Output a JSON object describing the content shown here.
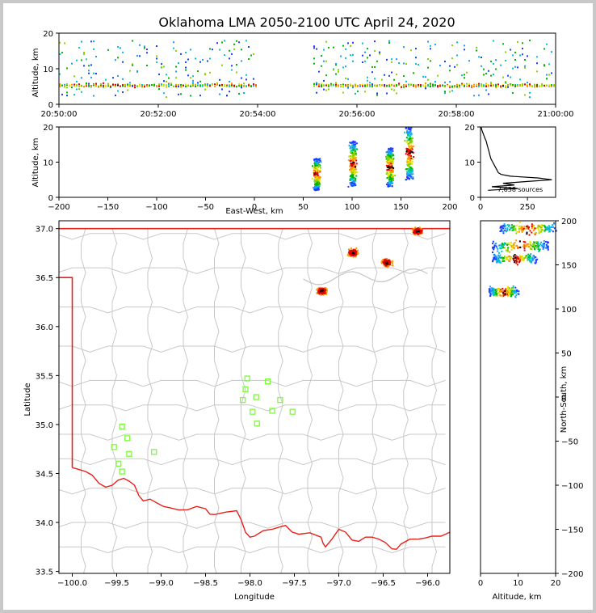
{
  "chart_data": [
    {
      "type": "scatter",
      "panel": "time-altitude",
      "title": "Oklahoma LMA 2050-2100 UTC April 24, 2020",
      "xlabel": "",
      "ylabel": "Altitude, km",
      "xticks": [
        "20:50:00",
        "20:52:00",
        "20:54:00",
        "20:56:00",
        "20:58:00",
        "21:00:00"
      ],
      "xlim_minutes": [
        0,
        10
      ],
      "ylim": [
        0,
        20
      ],
      "yticks": [
        0,
        10,
        20
      ],
      "gap_minutes": [
        4.0,
        5.1
      ],
      "grid": false
    },
    {
      "type": "scatter",
      "panel": "east-west-altitude",
      "xlabel": "East-West, km",
      "ylabel": "Altitude, km",
      "xlim": [
        -200,
        200
      ],
      "xticks": [
        -200,
        -150,
        -100,
        -50,
        0,
        50,
        100,
        150,
        200
      ],
      "ylim": [
        0,
        20
      ],
      "yticks": [
        0,
        10,
        20
      ],
      "clusters": [
        {
          "x": 63,
          "ylow": 2,
          "yhigh": 11
        },
        {
          "x": 100,
          "ylow": 3,
          "yhigh": 16
        },
        {
          "x": 138,
          "ylow": 3,
          "yhigh": 14
        },
        {
          "x": 158,
          "ylow": 5,
          "yhigh": 20
        }
      ]
    },
    {
      "type": "line",
      "panel": "altitude-histogram",
      "xlim": [
        0,
        400
      ],
      "xticks": [
        0,
        250
      ],
      "ylim": [
        0,
        20
      ],
      "yticks": [
        0,
        10,
        20
      ],
      "annotation": "7,638 sources",
      "profile": [
        [
          2,
          40
        ],
        [
          2.5,
          200
        ],
        [
          3,
          60
        ],
        [
          3.5,
          180
        ],
        [
          4,
          120
        ],
        [
          4.5,
          250
        ],
        [
          5,
          380
        ],
        [
          5.5,
          310
        ],
        [
          6,
          160
        ],
        [
          6.5,
          110
        ],
        [
          7,
          95
        ],
        [
          8,
          85
        ],
        [
          9,
          75
        ],
        [
          10,
          65
        ],
        [
          11,
          55
        ],
        [
          12,
          50
        ],
        [
          13,
          45
        ],
        [
          14,
          40
        ],
        [
          15,
          35
        ],
        [
          16,
          30
        ],
        [
          17,
          22
        ],
        [
          18,
          15
        ],
        [
          19,
          8
        ],
        [
          20,
          3
        ]
      ]
    },
    {
      "type": "map",
      "panel": "plan-view",
      "xlabel": "Longitude",
      "ylabel": "Latitude",
      "xlim": [
        -100.15,
        -95.75
      ],
      "ylim": [
        33.48,
        37.08
      ],
      "xticks": [
        -100.0,
        -99.5,
        -99.0,
        -98.5,
        -98.0,
        -97.5,
        -97.0,
        -96.5,
        -96.0
      ],
      "yticks": [
        33.5,
        34.0,
        34.5,
        35.0,
        35.5,
        36.0,
        36.5,
        37.0
      ],
      "xtick_labels": [
        "−100.0",
        "−99.5",
        "−99.0",
        "−98.5",
        "−98.0",
        "−97.5",
        "−97.0",
        "−96.5",
        "−96.0"
      ],
      "ytick_labels": [
        "33.5",
        "34.0",
        "34.5",
        "35.0",
        "35.5",
        "36.0",
        "36.5",
        "37.0"
      ],
      "stations": [
        [
          -98.03,
          35.47
        ],
        [
          -97.8,
          35.44
        ],
        [
          -98.05,
          35.36
        ],
        [
          -97.93,
          35.28
        ],
        [
          -98.08,
          35.25
        ],
        [
          -97.66,
          35.25
        ],
        [
          -97.97,
          35.13
        ],
        [
          -97.75,
          35.14
        ],
        [
          -97.52,
          35.13
        ],
        [
          -97.92,
          35.01
        ],
        [
          -99.44,
          34.98
        ],
        [
          -99.38,
          34.86
        ],
        [
          -99.53,
          34.77
        ],
        [
          -99.36,
          34.7
        ],
        [
          -99.08,
          34.72
        ],
        [
          -99.48,
          34.6
        ],
        [
          -99.44,
          34.52
        ]
      ],
      "source_clusters": [
        {
          "lon": -97.2,
          "lat": 36.37
        },
        {
          "lon": -96.85,
          "lat": 36.76
        },
        {
          "lon": -96.47,
          "lat": 36.66
        },
        {
          "lon": -96.12,
          "lat": 36.98
        }
      ]
    },
    {
      "type": "scatter",
      "panel": "altitude-north-south",
      "xlabel": "Altitude, km",
      "ylabel": "North-South, km",
      "xlim": [
        0,
        20
      ],
      "xticks": [
        0,
        10,
        20
      ],
      "ylim": [
        -200,
        200
      ],
      "yticks": [
        -200,
        -150,
        -100,
        -50,
        0,
        50,
        100,
        150,
        200
      ],
      "clusters": [
        {
          "y": 120,
          "xlow": 2,
          "xhigh": 10
        },
        {
          "y": 158,
          "xlow": 3,
          "xhigh": 15
        },
        {
          "y": 172,
          "xlow": 3,
          "xhigh": 18
        },
        {
          "y": 192,
          "xlow": 5,
          "xhigh": 20
        }
      ]
    }
  ],
  "colors": {
    "state_border": "#e8201a",
    "county_lines": "#c8c8c8",
    "stations": "#7cfc3a",
    "histogram": "#000000",
    "density_scale": [
      "#1e3cff",
      "#1e9bff",
      "#00c8c8",
      "#00b400",
      "#8cd200",
      "#e6e600",
      "#ff9600",
      "#e60000",
      "#000000"
    ]
  }
}
